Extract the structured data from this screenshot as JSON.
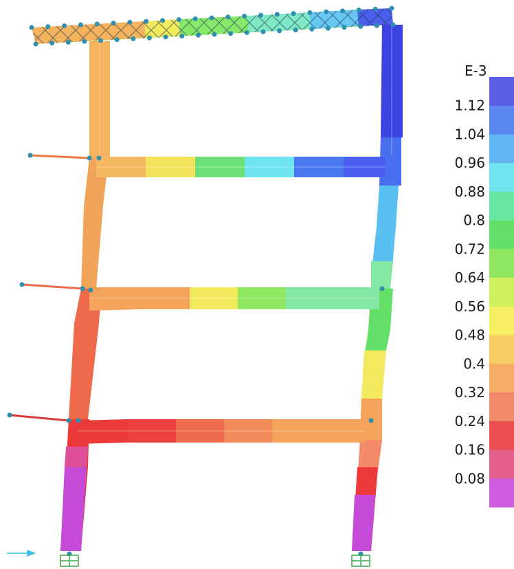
{
  "legend": {
    "exponent_label": "E-3",
    "ticks": [
      "1.12",
      "1.04",
      "0.96",
      "0.88",
      "0.8",
      "0.72",
      "0.64",
      "0.56",
      "0.48",
      "0.4",
      "0.32",
      "0.24",
      "0.16",
      "0.08"
    ],
    "band_colors": [
      "#5a5ee6",
      "#5a86ef",
      "#62b4f2",
      "#6ee4ee",
      "#67e6a4",
      "#63e067",
      "#8fe860",
      "#cfef5e",
      "#f7ef62",
      "#f8cf62",
      "#f6ae66",
      "#f38a6a",
      "#ec4f52",
      "#e4608c",
      "#cf5ee0"
    ]
  },
  "structure": {
    "colors": {
      "red": "#ec3a3a",
      "red_orange": "#ef6a4a",
      "orange": "#f4a35a",
      "light_orange": "#f7b862",
      "yellow": "#f2ea5c",
      "yellow_green": "#c9e65b",
      "green": "#6ee07a",
      "light_green": "#84e8a4",
      "cyan": "#6ee4ee",
      "light_blue": "#5aa8f2",
      "blue": "#4a5ef0",
      "dark_blue": "#3b43e0",
      "magenta": "#c64ad8",
      "pink": "#e0509a",
      "node": "#2e8fae",
      "support": "#3aa64a",
      "load_arrow": "#3ac0e8"
    }
  }
}
